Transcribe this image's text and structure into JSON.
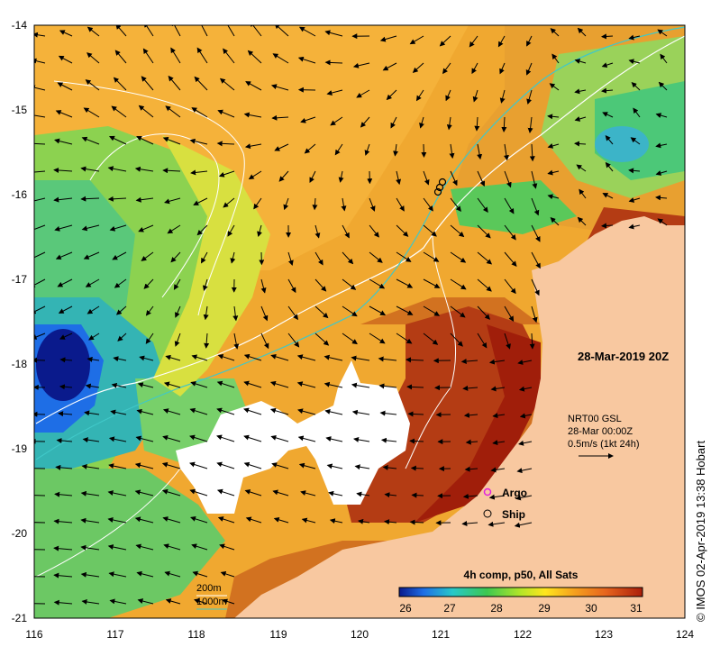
{
  "map": {
    "date_label": "28-Mar-2019 20Z",
    "lon_ticks": [
      "116",
      "117",
      "118",
      "119",
      "120",
      "121",
      "122",
      "123",
      "124"
    ],
    "lat_ticks": [
      "-14",
      "-15",
      "-16",
      "-17",
      "-18",
      "-19",
      "-20",
      "-21"
    ],
    "current_legend": {
      "line1": "NRT00 GSL",
      "line2": "28-Mar 00:00Z",
      "line3": "0.5m/s (1kt 24h)"
    },
    "markers": {
      "argo_label": "Argo",
      "ship_label": "Ship",
      "argo_color": "#e020e0"
    },
    "isobaths": {
      "shallow_label": "200m",
      "deep_label": "1000m",
      "shallow_color": "#ffffff",
      "deep_color": "#40c8c8"
    },
    "colorbar": {
      "title": "4h comp, p50, All Sats",
      "ticks": [
        "26",
        "27",
        "28",
        "29",
        "30",
        "31"
      ],
      "colors": [
        "#0a1a8c",
        "#1e6ee6",
        "#28c8c8",
        "#3cc850",
        "#b4e628",
        "#ffe61e",
        "#f5a01e",
        "#e6641e",
        "#aa1e0a"
      ]
    },
    "land_color": "#f8c8a0",
    "cloud_color": "#ffffff"
  },
  "credit": "© IMOS 02-Apr-2019 13:38 Hobart"
}
